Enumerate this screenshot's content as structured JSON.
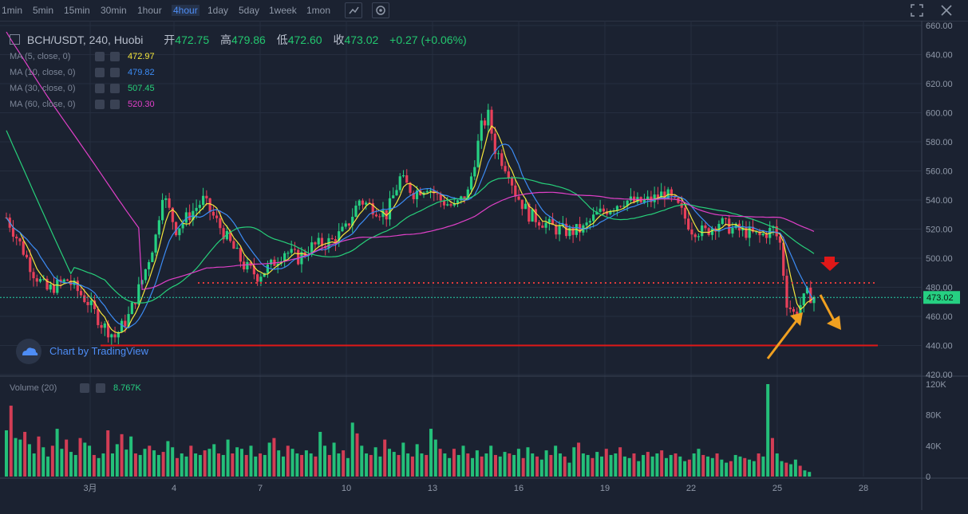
{
  "toolbar": {
    "timeframes": [
      "1min",
      "5min",
      "15min",
      "30min",
      "1hour",
      "4hour",
      "1day",
      "5day",
      "1week",
      "1mon"
    ],
    "active_timeframe": "4hour"
  },
  "header": {
    "symbol": "BCH/USDT, 240, Huobi",
    "open_label": "开",
    "open": "472.75",
    "high_label": "高",
    "high": "479.86",
    "low_label": "低",
    "low": "472.60",
    "close_label": "收",
    "close": "473.02",
    "change": "+0.27 (+0.06%)"
  },
  "indicators": [
    {
      "label": "MA (5, close, 0)",
      "value": "472.97",
      "color": "#f5e63c"
    },
    {
      "label": "MA (10, close, 0)",
      "value": "479.82",
      "color": "#3c8cf5"
    },
    {
      "label": "MA (30, close, 0)",
      "value": "507.45",
      "color": "#27d07a"
    },
    {
      "label": "MA (60, close, 0)",
      "value": "520.30",
      "color": "#e040c8"
    }
  ],
  "branding": {
    "text": "Chart by TradingView"
  },
  "volume": {
    "label": "Volume (20)",
    "value": "8.767K"
  },
  "colors": {
    "up": "#26d082",
    "down": "#e8405a",
    "grid": "#262e3f",
    "text": "#8f98a8"
  },
  "chart_data": {
    "type": "candlestick",
    "symbol": "BCH/USDT",
    "last_price": 473.02,
    "price_axis": {
      "ticks": [
        420,
        440,
        460,
        480,
        500,
        520,
        540,
        560,
        580,
        600,
        620,
        640,
        660
      ],
      "range": [
        420,
        660
      ]
    },
    "volume_axis": {
      "ticks": [
        "0",
        "40K",
        "80K",
        "120K"
      ],
      "values": [
        0,
        40000,
        80000,
        120000
      ]
    },
    "x_tick_labels": [
      "3月",
      "4",
      "7",
      "10",
      "13",
      "16",
      "19",
      "22",
      "25",
      "28"
    ],
    "annotations": {
      "support_line": 440,
      "resistance_dotted": 483
    },
    "price_path": [
      [
        0,
        528
      ],
      [
        4,
        510
      ],
      [
        8,
        490
      ],
      [
        12,
        478
      ],
      [
        18,
        485
      ],
      [
        24,
        470
      ],
      [
        28,
        455
      ],
      [
        32,
        446
      ],
      [
        36,
        460
      ],
      [
        40,
        485
      ],
      [
        44,
        515
      ],
      [
        46,
        545
      ],
      [
        50,
        520
      ],
      [
        54,
        530
      ],
      [
        58,
        540
      ],
      [
        62,
        525
      ],
      [
        66,
        510
      ],
      [
        70,
        495
      ],
      [
        74,
        488
      ],
      [
        78,
        495
      ],
      [
        82,
        505
      ],
      [
        86,
        500
      ],
      [
        90,
        508
      ],
      [
        96,
        512
      ],
      [
        100,
        520
      ],
      [
        104,
        540
      ],
      [
        108,
        535
      ],
      [
        112,
        530
      ],
      [
        116,
        555
      ],
      [
        120,
        545
      ],
      [
        124,
        550
      ],
      [
        128,
        540
      ],
      [
        132,
        535
      ],
      [
        136,
        545
      ],
      [
        140,
        590
      ],
      [
        142,
        598
      ],
      [
        144,
        575
      ],
      [
        148,
        560
      ],
      [
        150,
        545
      ],
      [
        154,
        530
      ],
      [
        158,
        525
      ],
      [
        162,
        520
      ],
      [
        166,
        518
      ],
      [
        170,
        520
      ],
      [
        174,
        530
      ],
      [
        178,
        535
      ],
      [
        182,
        540
      ],
      [
        186,
        538
      ],
      [
        190,
        540
      ],
      [
        194,
        545
      ],
      [
        198,
        535
      ],
      [
        202,
        520
      ],
      [
        206,
        518
      ],
      [
        210,
        525
      ],
      [
        214,
        520
      ],
      [
        218,
        518
      ],
      [
        222,
        515
      ],
      [
        226,
        520
      ],
      [
        228,
        510
      ],
      [
        230,
        470
      ],
      [
        232,
        462
      ],
      [
        234,
        468
      ],
      [
        236,
        475
      ],
      [
        238,
        473
      ]
    ],
    "volume_heights": [
      60,
      92,
      50,
      48,
      58,
      42,
      30,
      52,
      38,
      26,
      40,
      62,
      36,
      48,
      32,
      28,
      50,
      44,
      40,
      28,
      24,
      30,
      60,
      30,
      42,
      55,
      35,
      52,
      30,
      28,
      36,
      40,
      34,
      28,
      32,
      46,
      38,
      24,
      30,
      26,
      40,
      30,
      28,
      34,
      36,
      42,
      30,
      28,
      48,
      30,
      38,
      36,
      28,
      40,
      26,
      30,
      28,
      44,
      50,
      34,
      26,
      40,
      36,
      30,
      28,
      34,
      30,
      26,
      58,
      40,
      28,
      44,
      30,
      34,
      24,
      70,
      56,
      40,
      30,
      28,
      38,
      26,
      48,
      36,
      32,
      28,
      44,
      30,
      26,
      42,
      30,
      28,
      62,
      48,
      36,
      30,
      24,
      36,
      28,
      40,
      30,
      24,
      34,
      26,
      30,
      40,
      28,
      26,
      32,
      30,
      28,
      36,
      24,
      38,
      30,
      26,
      22,
      34,
      28,
      40,
      30,
      26,
      18,
      38,
      44,
      30,
      28,
      24,
      32,
      26,
      36,
      28,
      30,
      38,
      26,
      24,
      30,
      20,
      28,
      32,
      26,
      30,
      34,
      24,
      28,
      30,
      26,
      20,
      22,
      30,
      36,
      28,
      26,
      24,
      30,
      22,
      18,
      20,
      28,
      26,
      24,
      22,
      20,
      30,
      26,
      120,
      50,
      30,
      20,
      18,
      16,
      22,
      14,
      8,
      6
    ]
  }
}
